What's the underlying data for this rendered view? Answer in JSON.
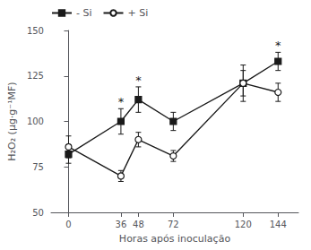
{
  "chart_data": {
    "type": "line",
    "xlabel": "Horas após inoculação",
    "ylabel": "H₂O₂ (µg·g⁻¹MF)",
    "x": [
      0,
      36,
      48,
      72,
      120,
      144
    ],
    "series": [
      {
        "name": "- Si",
        "color": "#1a1a1a",
        "marker": "square",
        "values": [
          82,
          100,
          112,
          100,
          121,
          133
        ],
        "errors": [
          5,
          7,
          7,
          5,
          7,
          5
        ]
      },
      {
        "name": "+ Si",
        "color": "#1a1a1a",
        "marker": "open_circle",
        "values": [
          86,
          70,
          90,
          81,
          121,
          116
        ],
        "errors": [
          6,
          3,
          4,
          3,
          10,
          5
        ]
      }
    ],
    "annotations": [
      {
        "text": "*",
        "x": 36,
        "series": "- Si"
      },
      {
        "text": "*",
        "x": 48,
        "series": "- Si"
      },
      {
        "text": "*",
        "x": 144,
        "series": "- Si"
      }
    ],
    "xlim": [
      -12,
      158
    ],
    "xticks": [
      0,
      36,
      48,
      72,
      120,
      144
    ],
    "ylim": [
      50,
      150
    ],
    "yticks": [
      50,
      75,
      100,
      125,
      150
    ],
    "grid": false,
    "legend": "upper left"
  }
}
